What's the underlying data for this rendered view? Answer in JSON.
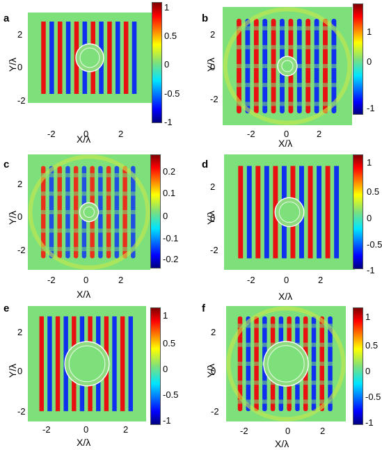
{
  "chart_data": [
    {
      "type": "heatmap",
      "panel": "a",
      "xlabel": "X/λ",
      "ylabel": "Y/λ",
      "xticks": [
        "-2",
        "0",
        "2"
      ],
      "yticks": [
        "2",
        "0",
        "-2"
      ],
      "xlim": [
        -3.5,
        3.5
      ],
      "ylim": [
        -3.5,
        3.5
      ],
      "colorbar_ticks": [
        "1",
        "0.5",
        "0",
        "-0.5",
        "-1"
      ],
      "colorbar_range": [
        -1,
        1
      ],
      "field": "plane-wave stripes inside square region with invisible circular cloak (no scattering)"
    },
    {
      "type": "heatmap",
      "panel": "b",
      "xlabel": "X/λ",
      "ylabel": "Y/λ",
      "xticks": [
        "-2",
        "0",
        "2"
      ],
      "yticks": [
        "2",
        "0",
        "-2"
      ],
      "xlim": [
        -3.5,
        3.5
      ],
      "ylim": [
        -3.5,
        3.5
      ],
      "colorbar_ticks": [
        "1",
        "0",
        "-1"
      ],
      "colorbar_range": [
        -1.4,
        1.4
      ],
      "field": "plane wave scattered by bare cylinder (interference pattern)"
    },
    {
      "type": "heatmap",
      "panel": "c",
      "xlabel": "X/λ",
      "ylabel": "Y/λ",
      "xticks": [
        "-2",
        "0",
        "2"
      ],
      "yticks": [
        "2",
        "0",
        "-2"
      ],
      "xlim": [
        -3.5,
        3.5
      ],
      "ylim": [
        -3.5,
        3.5
      ],
      "colorbar_ticks": [
        "0.2",
        "0.1",
        "0",
        "-0.1",
        "-0.2"
      ],
      "colorbar_range": [
        -0.27,
        0.27
      ],
      "field": "scattered field with strong interference"
    },
    {
      "type": "heatmap",
      "panel": "d",
      "xlabel": "X/λ",
      "ylabel": "Y/λ",
      "xticks": [
        "-2",
        "0",
        "2"
      ],
      "yticks": [
        "2",
        "0",
        "-2"
      ],
      "xlim": [
        -3.5,
        3.5
      ],
      "ylim": [
        -3.5,
        3.5
      ],
      "colorbar_ticks": [
        "1",
        "0.5",
        "0",
        "-0.5",
        "-1"
      ],
      "colorbar_range": [
        -1.15,
        1.15
      ],
      "field": "near-ideal cloak, slightly perturbed stripes"
    },
    {
      "type": "heatmap",
      "panel": "e",
      "xlabel": "X/λ",
      "ylabel": "Y/λ",
      "xticks": [
        "-2",
        "0",
        "2"
      ],
      "yticks": [
        "2",
        "0",
        "-2"
      ],
      "xlim": [
        -2.8,
        2.8
      ],
      "ylim": [
        -2.8,
        2.8
      ],
      "colorbar_ticks": [
        "1",
        "0.5",
        "0",
        "-0.5",
        "-1"
      ],
      "colorbar_range": [
        -1.15,
        1.15
      ],
      "field": "plane wave stripes with large invisible cloak"
    },
    {
      "type": "heatmap",
      "panel": "f",
      "xlabel": "X/λ",
      "ylabel": "Y/λ",
      "xticks": [
        "-2",
        "0",
        "2"
      ],
      "yticks": [
        "2",
        "0",
        "-2"
      ],
      "xlim": [
        -2.8,
        2.8
      ],
      "ylim": [
        -2.8,
        2.8
      ],
      "colorbar_ticks": [
        "1",
        "0.5",
        "0",
        "-0.5",
        "-1"
      ],
      "colorbar_range": [
        -1.3,
        1.3
      ],
      "field": "large cylinder scattering with distorted stripes"
    }
  ]
}
